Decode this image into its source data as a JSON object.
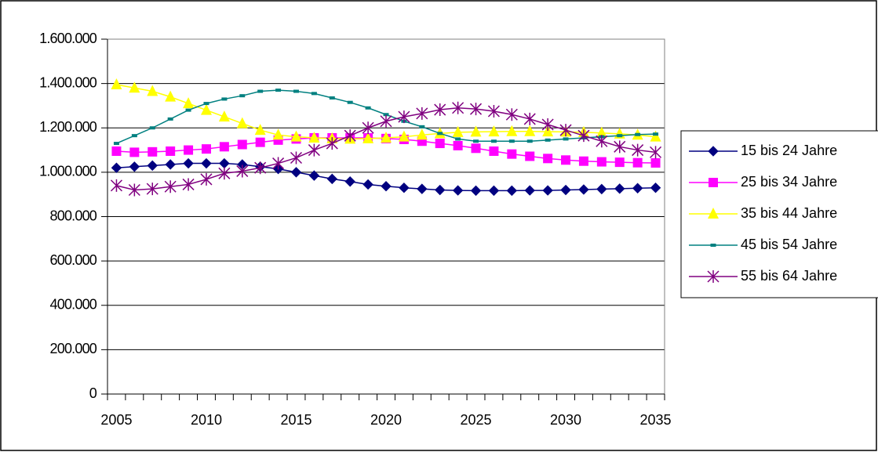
{
  "chart_data": {
    "type": "line",
    "categories": [
      "2005",
      null,
      null,
      null,
      null,
      "2010",
      null,
      null,
      null,
      null,
      "2015",
      null,
      null,
      null,
      null,
      "2020",
      null,
      null,
      null,
      null,
      "2025",
      null,
      null,
      null,
      null,
      "2030",
      null,
      null,
      null,
      null,
      "2035"
    ],
    "series": [
      {
        "name": "15 bis 24 Jahre",
        "color": "#000080",
        "marker": "diamond",
        "values": [
          1020000,
          1025000,
          1030000,
          1035000,
          1040000,
          1040000,
          1040000,
          1035000,
          1025000,
          1015000,
          1000000,
          985000,
          970000,
          958000,
          945000,
          937000,
          930000,
          925000,
          920000,
          918000,
          917000,
          917000,
          917000,
          918000,
          918000,
          920000,
          922000,
          924000,
          926000,
          928000,
          930000
        ]
      },
      {
        "name": "25 bis 34 Jahre",
        "color": "#ff00ff",
        "marker": "square",
        "values": [
          1095000,
          1090000,
          1092000,
          1095000,
          1100000,
          1105000,
          1115000,
          1125000,
          1135000,
          1145000,
          1150000,
          1155000,
          1155000,
          1155000,
          1155000,
          1152000,
          1148000,
          1140000,
          1130000,
          1120000,
          1108000,
          1095000,
          1082000,
          1072000,
          1062000,
          1055000,
          1050000,
          1047000,
          1045000,
          1043000,
          1042000
        ]
      },
      {
        "name": "35 bis 44 Jahre",
        "color": "#ffff00",
        "marker": "triangle",
        "values": [
          1395000,
          1380000,
          1365000,
          1340000,
          1310000,
          1280000,
          1250000,
          1220000,
          1190000,
          1168000,
          1160000,
          1155000,
          1152000,
          1150000,
          1152000,
          1155000,
          1160000,
          1168000,
          1175000,
          1180000,
          1182000,
          1183000,
          1184000,
          1184000,
          1183000,
          1182000,
          1180000,
          1177000,
          1173000,
          1168000,
          1160000
        ]
      },
      {
        "name": "45 bis 54 Jahre",
        "color": "#008080",
        "marker": "dash",
        "values": [
          1130000,
          1165000,
          1200000,
          1240000,
          1280000,
          1310000,
          1330000,
          1345000,
          1365000,
          1370000,
          1365000,
          1355000,
          1335000,
          1315000,
          1290000,
          1260000,
          1230000,
          1205000,
          1175000,
          1150000,
          1140000,
          1140000,
          1140000,
          1140000,
          1145000,
          1150000,
          1155000,
          1160000,
          1165000,
          1170000,
          1172000
        ]
      },
      {
        "name": "55 bis 64 Jahre",
        "color": "#800080",
        "marker": "star",
        "values": [
          940000,
          920000,
          925000,
          935000,
          945000,
          968000,
          995000,
          1005000,
          1020000,
          1040000,
          1065000,
          1100000,
          1130000,
          1165000,
          1200000,
          1230000,
          1250000,
          1265000,
          1282000,
          1290000,
          1285000,
          1275000,
          1260000,
          1240000,
          1215000,
          1190000,
          1165000,
          1140000,
          1115000,
          1100000,
          1090000
        ]
      }
    ],
    "ylim": [
      0,
      1600000
    ],
    "yticks": [
      0,
      {
        "value": 200000,
        "label": "200.000"
      },
      {
        "value": 400000,
        "label": "400.000"
      },
      {
        "value": 600000,
        "label": "600.000"
      },
      {
        "value": 800000,
        "label": "800.000"
      },
      {
        "value": 1000000,
        "label": "1.000.000"
      },
      {
        "value": 1200000,
        "label": "1.200.000"
      },
      {
        "value": 1400000,
        "label": "1.400.000"
      },
      {
        "value": 1600000,
        "label": "1.600.000"
      }
    ],
    "grid": true,
    "legend": "right"
  }
}
